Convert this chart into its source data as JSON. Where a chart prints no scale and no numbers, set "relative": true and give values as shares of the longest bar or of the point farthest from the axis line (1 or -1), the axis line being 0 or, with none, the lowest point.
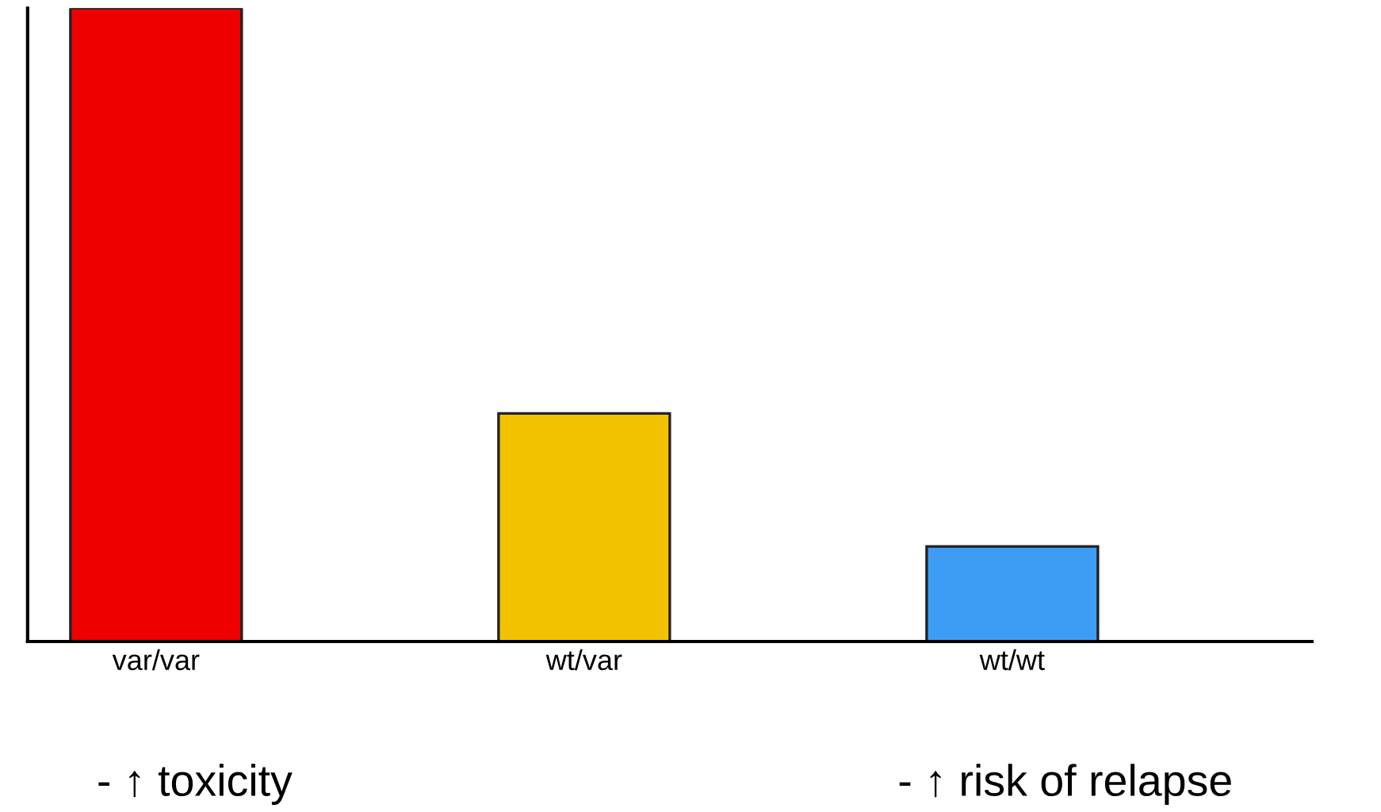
{
  "chart_data": {
    "type": "bar",
    "relative": true,
    "categories": [
      "var/var",
      "wt/var",
      "wt/wt"
    ],
    "values": [
      1,
      0.36,
      0.15
    ],
    "colors": [
      "#ee0000",
      "#f2c200",
      "#3d9df5"
    ],
    "annotations": [
      "- ↑ toxicity",
      "- ↑ risk of relapse"
    ],
    "grid": false,
    "legend": false
  }
}
